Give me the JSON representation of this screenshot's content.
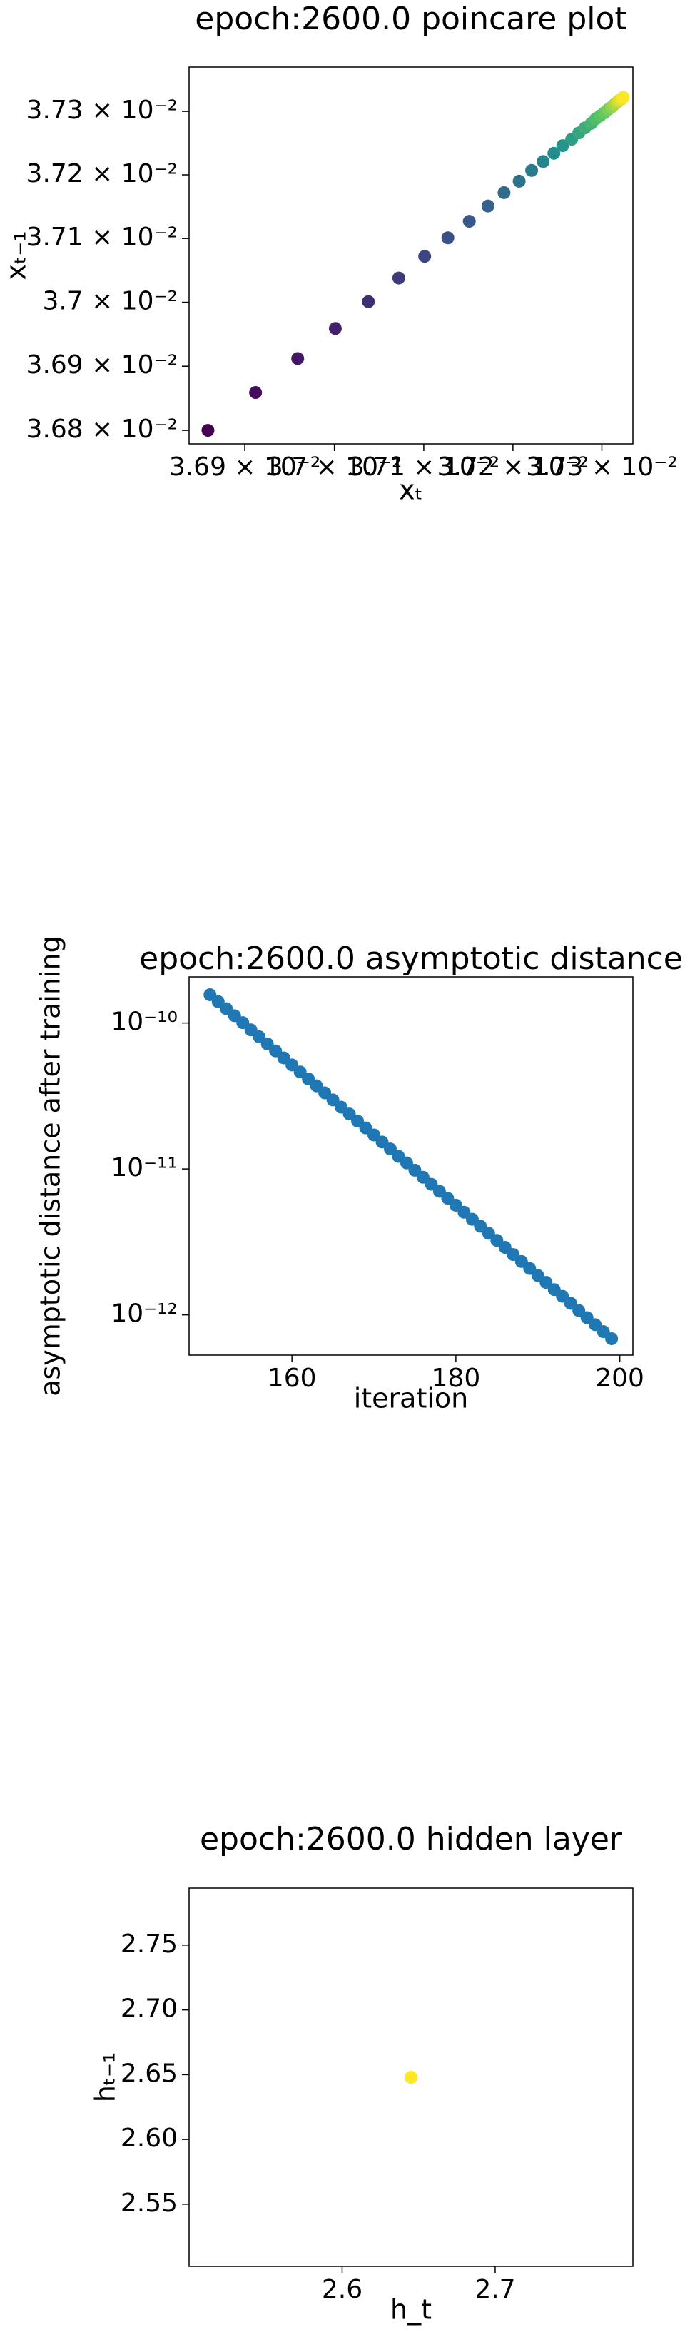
{
  "chart_data": [
    {
      "type": "scatter",
      "title": "epoch:2600.0 poincare plot",
      "xlabel": "xₜ",
      "ylabel": "xₜ₋₁",
      "xscale": "log",
      "yscale": "log",
      "colormap": "viridis",
      "x": [
        0.036859,
        0.036912,
        0.036959,
        0.037001,
        0.037038,
        0.037072,
        0.037101,
        0.037127,
        0.037151,
        0.037172,
        0.03719,
        0.037207,
        0.037221,
        0.037234,
        0.037246,
        0.037256,
        0.037266,
        0.037274,
        0.037281,
        0.037288,
        0.037293,
        0.037298,
        0.037303,
        0.037307,
        0.037311,
        0.037314,
        0.037317,
        0.037319,
        0.037322,
        0.037324
      ],
      "values": [
        0.0368,
        0.036859,
        0.036912,
        0.036959,
        0.037001,
        0.037038,
        0.037072,
        0.037101,
        0.037127,
        0.037151,
        0.037172,
        0.03719,
        0.037207,
        0.037221,
        0.037234,
        0.037246,
        0.037256,
        0.037266,
        0.037274,
        0.037281,
        0.037288,
        0.037293,
        0.037298,
        0.037303,
        0.037307,
        0.037311,
        0.037314,
        0.037317,
        0.037319,
        0.037322
      ],
      "xlim": [
        0.036838,
        0.037335
      ],
      "ylim": [
        0.036779,
        0.03737
      ],
      "xticks": [
        {
          "value": 0.0369,
          "label": "3.69 × 10⁻²"
        },
        {
          "value": 0.037,
          "label": "3.7 × 10⁻²"
        },
        {
          "value": 0.0371,
          "label": "3.71 × 10⁻²"
        },
        {
          "value": 0.0372,
          "label": "3.72 × 10⁻²"
        },
        {
          "value": 0.0373,
          "label": "3.73 × 10⁻²"
        }
      ],
      "yticks": [
        {
          "value": 0.0368,
          "label": "3.68 × 10⁻²"
        },
        {
          "value": 0.0369,
          "label": "3.69 × 10⁻²"
        },
        {
          "value": 0.037,
          "label": "3.7 × 10⁻²"
        },
        {
          "value": 0.0371,
          "label": "3.71 × 10⁻²"
        },
        {
          "value": 0.0372,
          "label": "3.72 × 10⁻²"
        },
        {
          "value": 0.0373,
          "label": "3.73 × 10⁻²"
        }
      ]
    },
    {
      "type": "scatter",
      "title": "epoch:2600.0 asymptotic distance",
      "xlabel": "iteration",
      "ylabel": "asymptotic distance after training",
      "yscale": "log",
      "color": "#1f77b4",
      "x": [
        150,
        151,
        152,
        153,
        154,
        155,
        156,
        157,
        158,
        159,
        160,
        161,
        162,
        163,
        164,
        165,
        166,
        167,
        168,
        169,
        170,
        171,
        172,
        173,
        174,
        175,
        176,
        177,
        178,
        179,
        180,
        181,
        182,
        183,
        184,
        185,
        186,
        187,
        188,
        189,
        190,
        191,
        192,
        193,
        194,
        195,
        196,
        197,
        198,
        199
      ],
      "values": [
        1.563e-10,
        1.4e-10,
        1.253e-10,
        1.122e-10,
        1.005e-10,
        8.97e-11,
        8.04e-11,
        7.19e-11,
        6.44e-11,
        5.77e-11,
        5.16e-11,
        4.62e-11,
        4.14e-11,
        3.71e-11,
        3.32e-11,
        2.97e-11,
        2.65e-11,
        2.38e-11,
        2.13e-11,
        1.91e-11,
        1.71e-11,
        1.53e-11,
        1.37e-11,
        1.22e-11,
        1.1e-11,
        9.8e-12,
        8.77e-12,
        7.85e-12,
        7.03e-12,
        6.3e-12,
        5.64e-12,
        5.05e-12,
        4.52e-12,
        4.05e-12,
        3.62e-12,
        3.24e-12,
        2.9e-12,
        2.59e-12,
        2.32e-12,
        2.08e-12,
        1.86e-12,
        1.67e-12,
        1.49e-12,
        1.34e-12,
        1.2e-12,
        1.07e-12,
        9.57e-13,
        8.57e-13,
        7.67e-13,
        6.87e-13
      ],
      "xlim": [
        147.45,
        201.6
      ],
      "ylim": [
        5.3e-13,
        2.07e-10
      ],
      "xticks": [
        160,
        180,
        200
      ],
      "yticks": [
        {
          "value": 1e-10,
          "label": "10⁻¹⁰"
        },
        {
          "value": 1e-11,
          "label": "10⁻¹¹"
        },
        {
          "value": 1e-12,
          "label": "10⁻¹²"
        }
      ]
    },
    {
      "type": "scatter",
      "title": "epoch:2600.0 hidden layer",
      "xlabel": "h_t",
      "ylabel": "hₜ₋₁",
      "color": "#fde725",
      "x": [
        2.645
      ],
      "values": [
        2.648
      ],
      "xlim": [
        2.5,
        2.79
      ],
      "ylim": [
        2.502,
        2.794
      ],
      "xticks": [
        2.6,
        2.7
      ],
      "yticks": [
        {
          "value": 2.55,
          "label": "2.55"
        },
        {
          "value": 2.6,
          "label": "2.60"
        },
        {
          "value": 2.65,
          "label": "2.65"
        },
        {
          "value": 2.7,
          "label": "2.70"
        },
        {
          "value": 2.75,
          "label": "2.75"
        }
      ]
    }
  ]
}
